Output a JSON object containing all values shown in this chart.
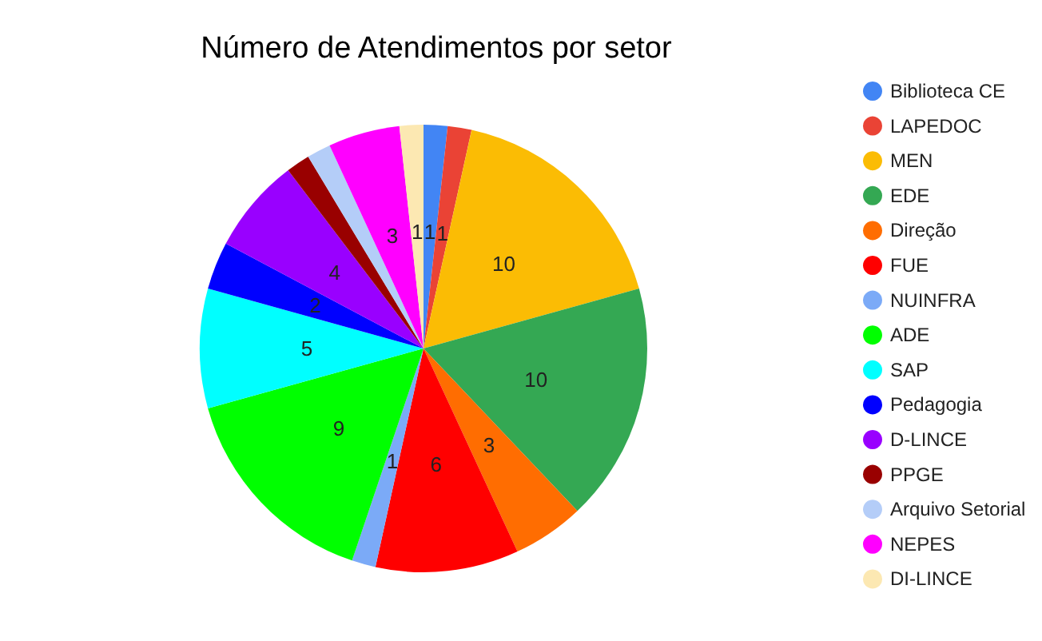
{
  "chart_data": {
    "type": "pie",
    "title": "Número de Atendimentos por setor",
    "categories": [
      "Biblioteca CE",
      "LAPEDOC",
      "MEN",
      "EDE",
      "Direção",
      "FUE",
      "NUINFRA",
      "ADE",
      "SAP",
      "Pedagogia",
      "D-LINCE",
      "PPGE",
      "Arquivo Setorial",
      "NEPES",
      "DI-LINCE"
    ],
    "values": [
      1,
      1,
      10,
      10,
      3,
      6,
      1,
      9,
      5,
      2,
      4,
      1,
      1,
      3,
      1
    ],
    "colors": [
      "#4285f4",
      "#ea4335",
      "#fbbc04",
      "#34a853",
      "#ff6d01",
      "#ff0000",
      "#7baaf7",
      "#00ff00",
      "#00ffff",
      "#0000ff",
      "#9900ff",
      "#990000",
      "#b4cdf8",
      "#ff00ff",
      "#fce8b2"
    ],
    "value_labels": [
      "1",
      "1",
      "10",
      "10",
      "3",
      "6",
      "1",
      "9",
      "5",
      "2",
      "4",
      null,
      null,
      "3",
      "1"
    ],
    "legend": "right"
  }
}
